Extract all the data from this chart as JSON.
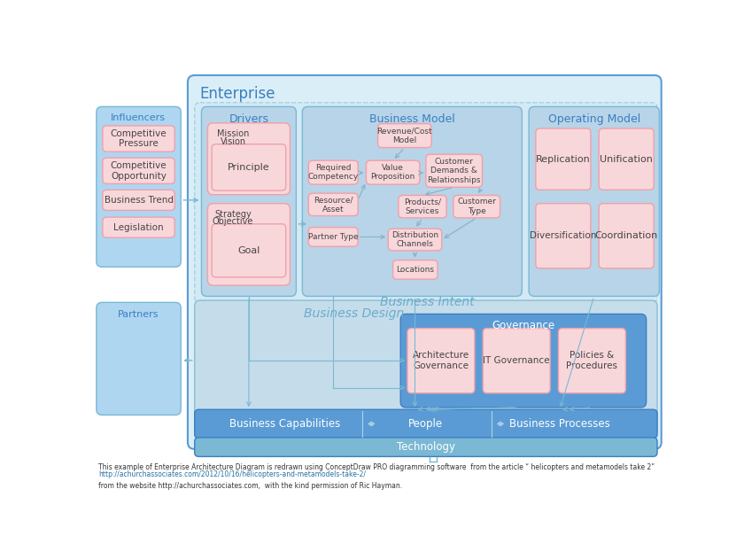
{
  "bg": "#ffffff",
  "ent_bg": "#daeef7",
  "ent_edge": "#5b9bd5",
  "panel_bg": "#b8d4e8",
  "panel_edge": "#7ab8d4",
  "bi_bg": "#cfe2f0",
  "bd_bg": "#c0d8ea",
  "gov_bg": "#5b9bd5",
  "gov_edge": "#3a7fc1",
  "pink_box": "#f8d7da",
  "pink_edge": "#f0a0a8",
  "bot_bg": "#5b9bd5",
  "tech_bg": "#7ab8d4",
  "infl_bg": "#aed6f1",
  "infl_edge": "#7ab8d4",
  "text_blue": "#3a7fc1",
  "text_dark": "#444444",
  "text_white": "#ffffff",
  "arr_col": "#7ab8d4",
  "footer1": "This example of Enterprise Architecture Diagram is redrawn using ConceptDraw PRO diagramming software  from the article “ helicopters and metamodels take 2”",
  "footer2": "http://achurchassociates.com/2012/10/16/helicopters-and-metamodels-take-2/",
  "footer3": "from the website http://achurchassociates.com,  with the kind permission of Ric Hayman."
}
